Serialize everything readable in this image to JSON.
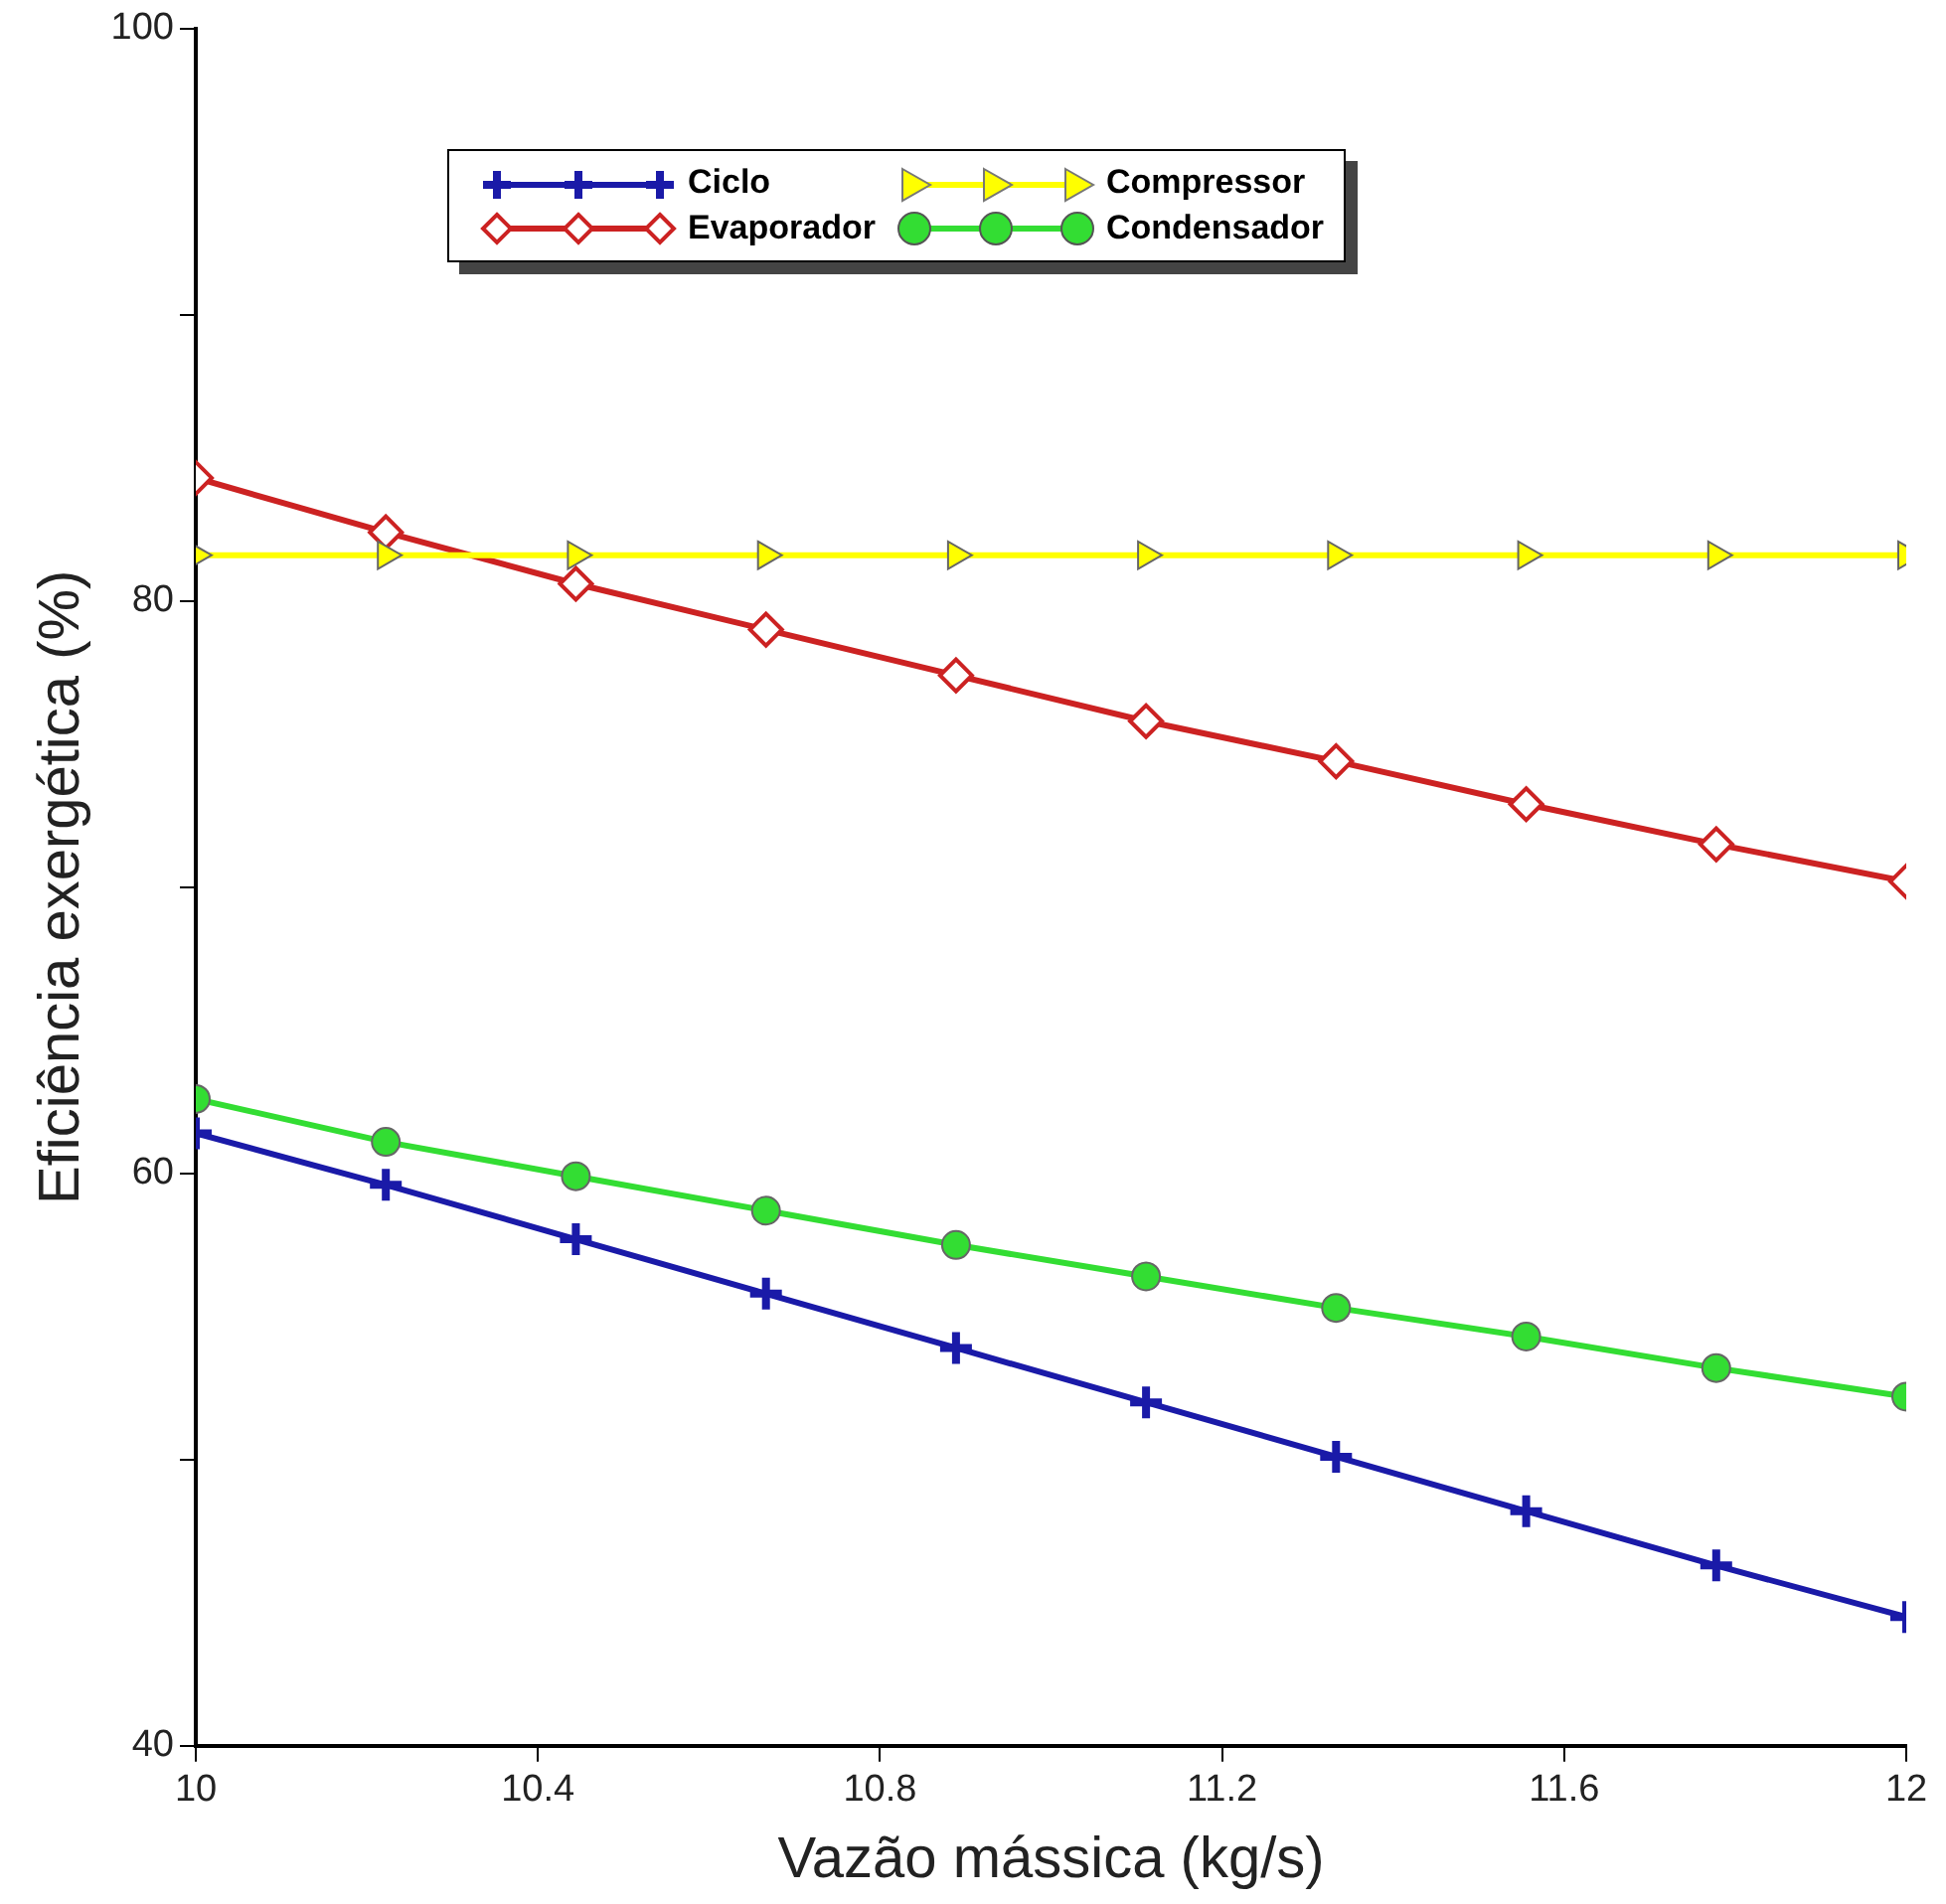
{
  "chart_data": {
    "type": "line",
    "xlabel": "Vazão mássica (kg/s)",
    "ylabel": "Eficiência exergética (%)",
    "x": [
      10,
      10.2222,
      10.4444,
      10.6667,
      10.8889,
      11.1111,
      11.3333,
      11.5556,
      11.7778,
      12
    ],
    "xlim": [
      10,
      12
    ],
    "xticks": [
      10,
      10.4,
      10.8,
      11.2,
      11.6,
      12
    ],
    "ylim": [
      40,
      100
    ],
    "yticks": [
      40,
      {
        "value": 50,
        "label": null
      },
      60,
      {
        "value": 70,
        "label": null
      },
      80,
      {
        "value": 90,
        "label": null
      },
      100
    ],
    "grid": false,
    "legend": "top",
    "line_style": "solid",
    "series": [
      {
        "name": "Ciclo",
        "color": "#1a1aa8",
        "marker": "cross",
        "values": [
          61.4,
          59.6,
          57.7,
          55.8,
          53.9,
          52.0,
          50.1,
          48.2,
          46.3,
          44.5
        ]
      },
      {
        "name": "Compressor",
        "color": "#ffff00",
        "marker": "triangle",
        "values": [
          81.6,
          81.6,
          81.6,
          81.6,
          81.6,
          81.6,
          81.6,
          81.6,
          81.6,
          81.6
        ]
      },
      {
        "name": "Evaporador",
        "color": "#cc2222",
        "marker": "diamond",
        "values": [
          84.3,
          82.4,
          80.6,
          79.0,
          77.4,
          75.8,
          74.4,
          72.9,
          71.5,
          70.2
        ]
      },
      {
        "name": "Condensador",
        "color": "#33dd33",
        "marker": "circle",
        "values": [
          62.6,
          61.1,
          59.9,
          58.7,
          57.5,
          56.4,
          55.3,
          54.3,
          53.2,
          52.2
        ]
      }
    ]
  }
}
